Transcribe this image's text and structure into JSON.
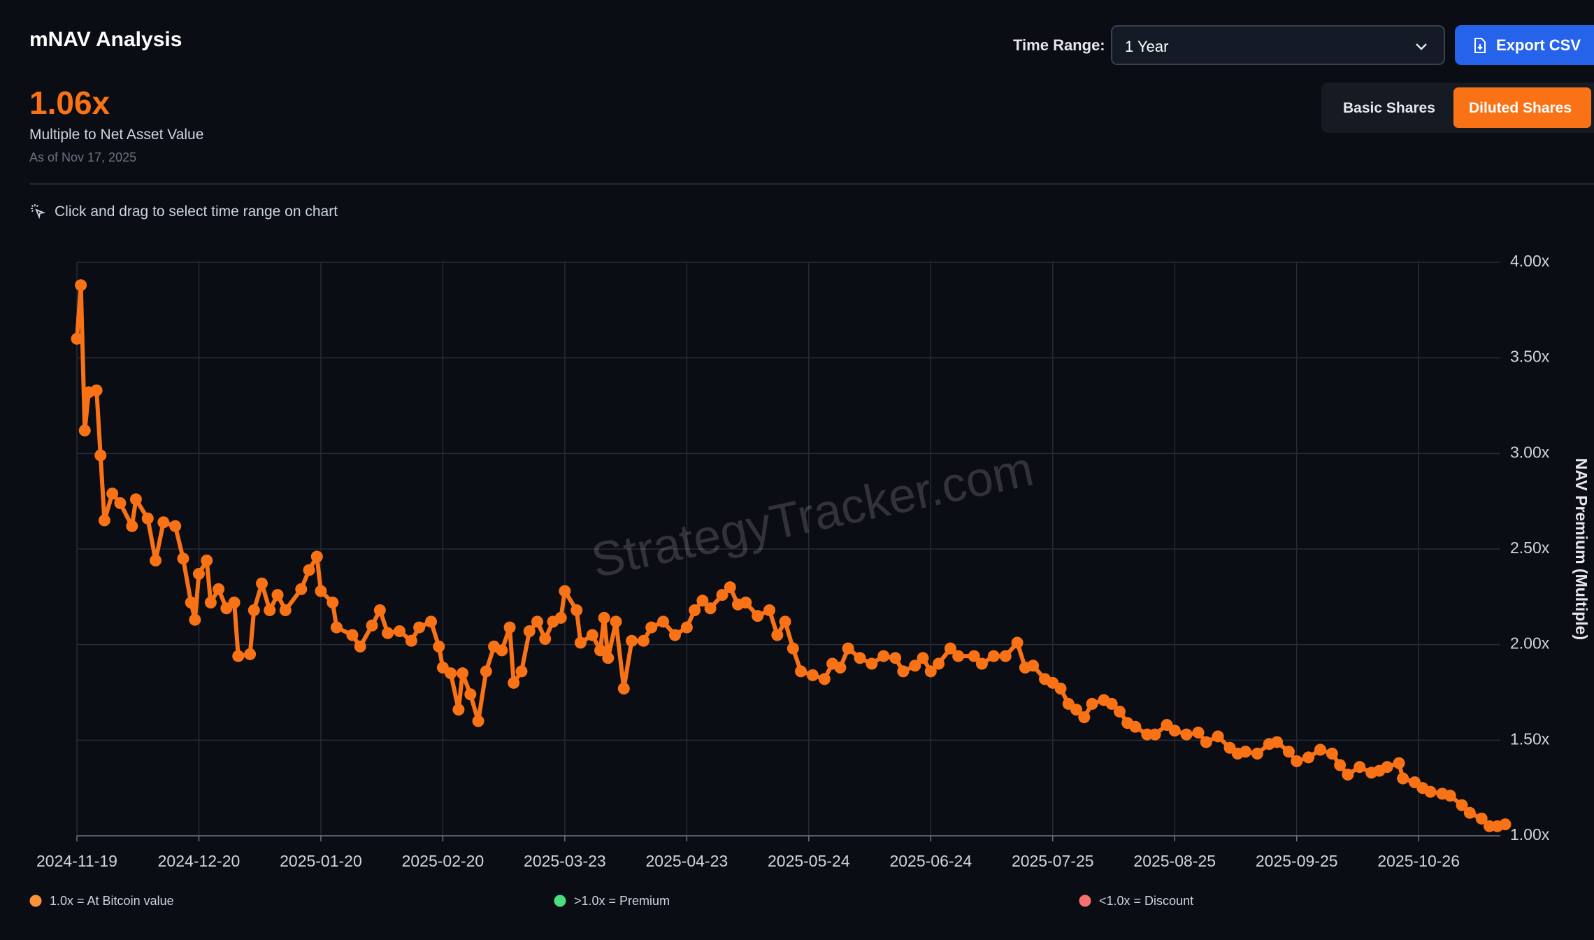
{
  "ui": {
    "title": "mNAV Analysis",
    "time_range_label": "Time Range:",
    "time_range_value": "1 Year",
    "export": "Export CSV",
    "current_value": "1.06x",
    "current_caption": "Multiple to Net Asset Value",
    "as_of": "As of Nov 17, 2025",
    "basic_shares": "Basic Shares",
    "diluted_shares": "Diluted Shares",
    "hint": "Click and drag to select time range on chart",
    "watermark": "StrategyTracker.com"
  },
  "chart_data": {
    "type": "line",
    "y_axis_label": "NAV Premium (Multiple)",
    "y_axis_side": "right",
    "grid": true,
    "xlim": [
      "2024-11-19",
      "2025-11-17"
    ],
    "xticks": [
      "2024-11-19",
      "2024-12-20",
      "2025-01-20",
      "2025-02-20",
      "2025-03-23",
      "2025-04-23",
      "2025-05-24",
      "2025-06-24",
      "2025-07-25",
      "2025-08-25",
      "2025-09-25",
      "2025-10-26"
    ],
    "ylim": [
      1,
      4
    ],
    "yticks": [
      {
        "value": 1,
        "label": "1.00x"
      },
      {
        "value": 1.5,
        "label": "1.50x"
      },
      {
        "value": 2,
        "label": "2.00x"
      },
      {
        "value": 2.5,
        "label": "2.50x"
      },
      {
        "value": 3,
        "label": "3.00x"
      },
      {
        "value": 3.5,
        "label": "3.50x"
      },
      {
        "value": 4,
        "label": "4.00x"
      }
    ],
    "x": [
      "2024-11-19",
      "2024-11-20",
      "2024-11-21",
      "2024-11-22",
      "2024-11-24",
      "2024-11-25",
      "2024-11-26",
      "2024-11-28",
      "2024-11-30",
      "2024-12-03",
      "2024-12-04",
      "2024-12-07",
      "2024-12-09",
      "2024-12-11",
      "2024-12-14",
      "2024-12-16",
      "2024-12-18",
      "2024-12-19",
      "2024-12-20",
      "2024-12-22",
      "2024-12-23",
      "2024-12-25",
      "2024-12-27",
      "2024-12-29",
      "2024-12-30",
      "2025-01-02",
      "2025-01-03",
      "2025-01-05",
      "2025-01-07",
      "2025-01-09",
      "2025-01-11",
      "2025-01-15",
      "2025-01-17",
      "2025-01-19",
      "2025-01-20",
      "2025-01-23",
      "2025-01-24",
      "2025-01-28",
      "2025-01-30",
      "2025-02-02",
      "2025-02-04",
      "2025-02-06",
      "2025-02-09",
      "2025-02-12",
      "2025-02-14",
      "2025-02-17",
      "2025-02-19",
      "2025-02-20",
      "2025-02-22",
      "2025-02-24",
      "2025-02-25",
      "2025-02-27",
      "2025-03-01",
      "2025-03-03",
      "2025-03-05",
      "2025-03-07",
      "2025-03-09",
      "2025-03-10",
      "2025-03-12",
      "2025-03-14",
      "2025-03-16",
      "2025-03-18",
      "2025-03-20",
      "2025-03-22",
      "2025-03-23",
      "2025-03-26",
      "2025-03-27",
      "2025-03-30",
      "2025-04-01",
      "2025-04-02",
      "2025-04-03",
      "2025-04-05",
      "2025-04-07",
      "2025-04-09",
      "2025-04-12",
      "2025-04-14",
      "2025-04-17",
      "2025-04-20",
      "2025-04-23",
      "2025-04-25",
      "2025-04-27",
      "2025-04-29",
      "2025-05-02",
      "2025-05-04",
      "2025-05-06",
      "2025-05-08",
      "2025-05-11",
      "2025-05-14",
      "2025-05-16",
      "2025-05-18",
      "2025-05-20",
      "2025-05-22",
      "2025-05-25",
      "2025-05-28",
      "2025-05-30",
      "2025-06-01",
      "2025-06-03",
      "2025-06-06",
      "2025-06-09",
      "2025-06-12",
      "2025-06-15",
      "2025-06-17",
      "2025-06-20",
      "2025-06-22",
      "2025-06-24",
      "2025-06-26",
      "2025-06-29",
      "2025-07-01",
      "2025-07-05",
      "2025-07-07",
      "2025-07-10",
      "2025-07-13",
      "2025-07-16",
      "2025-07-18",
      "2025-07-20",
      "2025-07-23",
      "2025-07-25",
      "2025-07-27",
      "2025-07-29",
      "2025-07-31",
      "2025-08-02",
      "2025-08-04",
      "2025-08-07",
      "2025-08-09",
      "2025-08-11",
      "2025-08-13",
      "2025-08-15",
      "2025-08-18",
      "2025-08-20",
      "2025-08-23",
      "2025-08-25",
      "2025-08-28",
      "2025-08-31",
      "2025-09-02",
      "2025-09-05",
      "2025-09-08",
      "2025-09-10",
      "2025-09-12",
      "2025-09-15",
      "2025-09-18",
      "2025-09-20",
      "2025-09-23",
      "2025-09-25",
      "2025-09-28",
      "2025-10-01",
      "2025-10-04",
      "2025-10-06",
      "2025-10-08",
      "2025-10-11",
      "2025-10-14",
      "2025-10-16",
      "2025-10-18",
      "2025-10-21",
      "2025-10-22",
      "2025-10-25",
      "2025-10-27",
      "2025-10-29",
      "2025-11-01",
      "2025-11-03",
      "2025-11-06",
      "2025-11-08",
      "2025-11-11",
      "2025-11-13",
      "2025-11-15",
      "2025-11-17"
    ],
    "series": [
      {
        "name": "mNAV",
        "color": "#f97316",
        "values": [
          3.6,
          3.88,
          3.12,
          3.32,
          3.33,
          2.99,
          2.65,
          2.79,
          2.74,
          2.62,
          2.76,
          2.66,
          2.44,
          2.64,
          2.62,
          2.45,
          2.22,
          2.13,
          2.37,
          2.44,
          2.22,
          2.29,
          2.19,
          2.22,
          1.94,
          1.95,
          2.18,
          2.32,
          2.18,
          2.26,
          2.18,
          2.29,
          2.39,
          2.46,
          2.28,
          2.22,
          2.09,
          2.05,
          1.99,
          2.1,
          2.18,
          2.06,
          2.07,
          2.02,
          2.09,
          2.12,
          1.99,
          1.88,
          1.85,
          1.66,
          1.85,
          1.74,
          1.6,
          1.86,
          1.99,
          1.97,
          2.09,
          1.8,
          1.86,
          2.07,
          2.12,
          2.03,
          2.12,
          2.14,
          2.28,
          2.18,
          2.01,
          2.05,
          1.97,
          2.14,
          1.93,
          2.12,
          1.77,
          2.02,
          2.02,
          2.09,
          2.12,
          2.05,
          2.09,
          2.18,
          2.23,
          2.19,
          2.26,
          2.3,
          2.21,
          2.22,
          2.15,
          2.18,
          2.05,
          2.12,
          1.98,
          1.86,
          1.84,
          1.82,
          1.9,
          1.88,
          1.98,
          1.93,
          1.9,
          1.94,
          1.93,
          1.86,
          1.89,
          1.93,
          1.86,
          1.9,
          1.98,
          1.94,
          1.94,
          1.9,
          1.94,
          1.94,
          2.01,
          1.88,
          1.89,
          1.82,
          1.8,
          1.77,
          1.69,
          1.66,
          1.62,
          1.69,
          1.71,
          1.69,
          1.65,
          1.59,
          1.57,
          1.53,
          1.53,
          1.58,
          1.55,
          1.53,
          1.54,
          1.49,
          1.52,
          1.46,
          1.43,
          1.44,
          1.43,
          1.48,
          1.49,
          1.44,
          1.39,
          1.41,
          1.45,
          1.43,
          1.37,
          1.32,
          1.36,
          1.33,
          1.34,
          1.36,
          1.38,
          1.3,
          1.28,
          1.25,
          1.23,
          1.22,
          1.21,
          1.16,
          1.12,
          1.09,
          1.05,
          1.05,
          1.06
        ]
      }
    ],
    "annotations": [
      {
        "text": "1.0x = At Bitcoin value",
        "color": "#fb923c"
      },
      {
        "text": ">1.0x = Premium",
        "color": "#4ade80"
      },
      {
        "text": "<1.0x = Discount",
        "color": "#f87171"
      }
    ]
  }
}
